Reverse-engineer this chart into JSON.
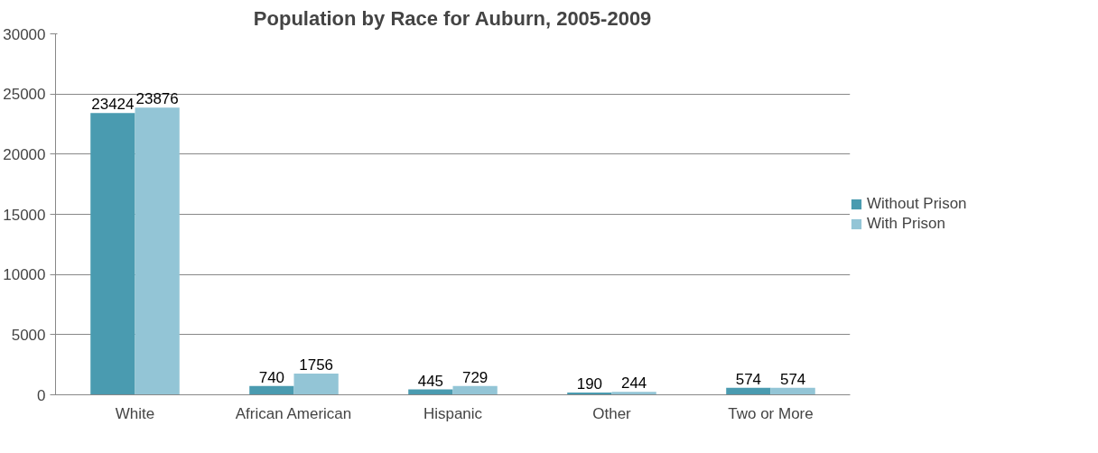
{
  "chart_data": {
    "type": "bar",
    "title": "Population by Race for Auburn, 2005-2009",
    "categories": [
      "White",
      "African American",
      "Hispanic",
      "Other",
      "Two or More"
    ],
    "series": [
      {
        "name": "Without Prison",
        "color": "#4a9bb0",
        "values": [
          23424,
          740,
          445,
          190,
          574
        ]
      },
      {
        "name": "With Prison",
        "color": "#93c5d6",
        "values": [
          23876,
          1756,
          729,
          244,
          574
        ]
      }
    ],
    "ylim": [
      0,
      30000
    ],
    "yticks": [
      0,
      5000,
      10000,
      15000,
      20000,
      25000,
      30000
    ],
    "grid": "y",
    "legend": "right",
    "data_labels": true
  }
}
